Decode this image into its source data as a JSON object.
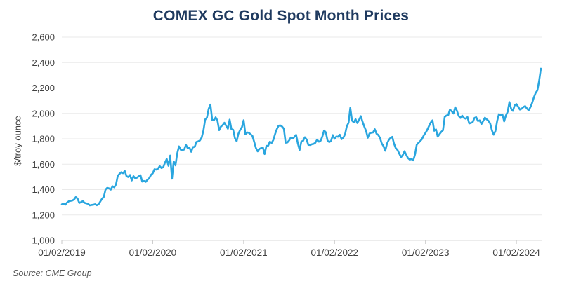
{
  "chart": {
    "title": "COMEX GC Gold Spot Month Prices",
    "y_axis_title": "$/troy ounce",
    "source": "Source: CME Group"
  },
  "colors": {
    "line": "#2AA6DF",
    "title": "#1f3a5f",
    "tick_label": "#404040",
    "gridline": "#eaeaea",
    "axis_line": "#d9d9d9",
    "tick_mark": "#c9c9c9",
    "background": "#ffffff"
  },
  "chart_data": {
    "type": "line",
    "title": "COMEX GC Gold Spot Month Prices",
    "xlabel": "",
    "ylabel": "$/troy ounce",
    "ylim": [
      1000,
      2600
    ],
    "xlim_years": [
      2019.0,
      2024.285
    ],
    "y_ticks": [
      1000,
      1200,
      1400,
      1600,
      1800,
      2000,
      2200,
      2400,
      2600
    ],
    "x_ticks": [
      {
        "year": 2019,
        "label": "01/02/2019"
      },
      {
        "year": 2020,
        "label": "01/02/2020"
      },
      {
        "year": 2021,
        "label": "01/02/2021"
      },
      {
        "year": 2022,
        "label": "01/02/2022"
      },
      {
        "year": 2023,
        "label": "01/02/2023"
      },
      {
        "year": 2024,
        "label": "01/02/2024"
      }
    ],
    "grid": "horizontal",
    "legend": "none",
    "series": [
      {
        "name": "COMEX GC gold spot month price ($/troy ounce)",
        "frequency": "weekly",
        "points_per_year": 52,
        "start_label": "01/02/2019",
        "values_by_year": {
          "2019": [
            1284,
            1290,
            1281,
            1298,
            1308,
            1311,
            1314,
            1322,
            1341,
            1329,
            1295,
            1301,
            1309,
            1296,
            1292,
            1288,
            1276,
            1279,
            1281,
            1285,
            1277,
            1284,
            1306,
            1328,
            1342,
            1400,
            1414,
            1410,
            1400,
            1426,
            1418,
            1441,
            1508,
            1524,
            1537,
            1529,
            1547,
            1506,
            1499,
            1515,
            1472,
            1506,
            1489,
            1494,
            1505,
            1513,
            1463,
            1468,
            1461,
            1478,
            1490,
            1516
          ],
          "2020": [
            1528,
            1560,
            1557,
            1565,
            1585,
            1570,
            1576,
            1612,
            1641,
            1587,
            1668,
            1486,
            1622,
            1591,
            1684,
            1740,
            1714,
            1711,
            1716,
            1752,
            1726,
            1731,
            1698,
            1735,
            1737,
            1775,
            1779,
            1787,
            1810,
            1865,
            1952,
            1966,
            2036,
            2069,
            1949,
            1946,
            1969,
            1945,
            1868,
            1896,
            1908,
            1926,
            1902,
            1879,
            1951,
            1876,
            1871,
            1805,
            1781,
            1840,
            1870,
            1891
          ],
          "2021": [
            1946,
            1835,
            1850,
            1847,
            1835,
            1823,
            1777,
            1728,
            1701,
            1720,
            1727,
            1732,
            1680,
            1744,
            1745,
            1777,
            1767,
            1792,
            1838,
            1876,
            1903,
            1905,
            1896,
            1879,
            1769,
            1771,
            1787,
            1810,
            1802,
            1814,
            1831,
            1763,
            1712,
            1778,
            1784,
            1812,
            1794,
            1752,
            1751,
            1757,
            1760,
            1768,
            1793,
            1777,
            1784,
            1817,
            1865,
            1851,
            1785,
            1774,
            1783,
            1829
          ],
          "2022": [
            1800,
            1818,
            1816,
            1832,
            1797,
            1808,
            1836,
            1899,
            1926,
            2043,
            1943,
            1929,
            1954,
            1924,
            1948,
            1978,
            1934,
            1896,
            1863,
            1808,
            1842,
            1848,
            1850,
            1875,
            1840,
            1830,
            1807,
            1763,
            1742,
            1706,
            1762,
            1791,
            1807,
            1815,
            1762,
            1726,
            1712,
            1684,
            1655,
            1672,
            1702,
            1674,
            1648,
            1636,
            1641,
            1630,
            1676,
            1754,
            1768,
            1782,
            1798,
            1826
          ],
          "2023": [
            1846,
            1870,
            1900,
            1928,
            1945,
            1863,
            1874,
            1817,
            1836,
            1854,
            1867,
            1973,
            1983,
            1986,
            2030,
            2016,
            1999,
            2048,
            2020,
            1980,
            1964,
            1982,
            1964,
            1958,
            1971,
            1921,
            1925,
            1931,
            1964,
            1970,
            1940,
            1945,
            1916,
            1940,
            1966,
            1953,
            1942,
            1920,
            1866,
            1832,
            1861,
            1941,
            1994,
            1983,
            1992,
            1937,
            1984,
            2013,
            2089,
            2036,
            2020,
            2064
          ],
          "2024": [
            2073,
            2052,
            2030,
            2037,
            2050,
            2057,
            2039,
            2024,
            2049,
            2083,
            2126,
            2161,
            2181,
            2257,
            2352
          ]
        }
      }
    ]
  }
}
